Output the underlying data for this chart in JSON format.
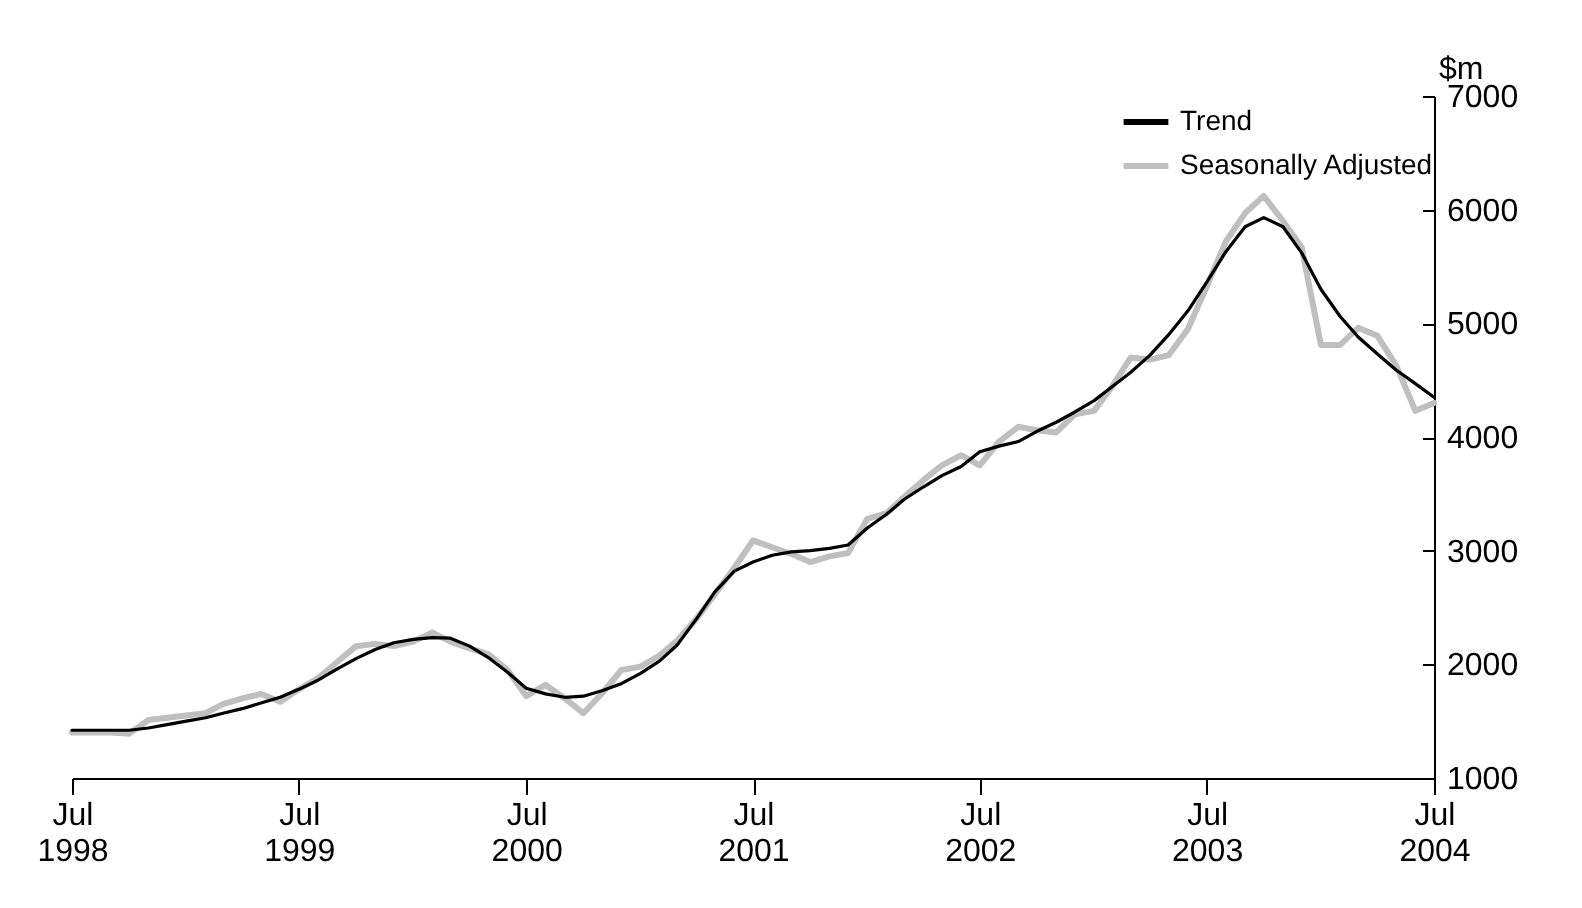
{
  "chart_data": {
    "type": "line",
    "ylabel": "$m",
    "legend": "top right",
    "x": [
      "1998-07",
      "1998-08",
      "1998-09",
      "1998-10",
      "1998-11",
      "1998-12",
      "1999-01",
      "1999-02",
      "1999-03",
      "1999-04",
      "1999-05",
      "1999-06",
      "1999-07",
      "1999-08",
      "1999-09",
      "1999-10",
      "1999-11",
      "1999-12",
      "2000-01",
      "2000-02",
      "2000-03",
      "2000-04",
      "2000-05",
      "2000-06",
      "2000-07",
      "2000-08",
      "2000-09",
      "2000-10",
      "2000-11",
      "2000-12",
      "2001-01",
      "2001-02",
      "2001-03",
      "2001-04",
      "2001-05",
      "2001-06",
      "2001-07",
      "2001-08",
      "2001-09",
      "2001-10",
      "2001-11",
      "2001-12",
      "2002-01",
      "2002-02",
      "2002-03",
      "2002-04",
      "2002-05",
      "2002-06",
      "2002-07",
      "2002-08",
      "2002-09",
      "2002-10",
      "2002-11",
      "2002-12",
      "2003-01",
      "2003-02",
      "2003-03",
      "2003-04",
      "2003-05",
      "2003-06",
      "2003-07",
      "2003-08",
      "2003-09",
      "2003-10",
      "2003-11",
      "2003-12",
      "2004-01",
      "2004-02",
      "2004-03",
      "2004-04",
      "2004-05",
      "2004-06",
      "2004-07"
    ],
    "series": [
      {
        "name": "Trend",
        "color": "#000000",
        "values": [
          1420,
          1420,
          1420,
          1420,
          1440,
          1470,
          1500,
          1530,
          1570,
          1610,
          1660,
          1710,
          1780,
          1860,
          1960,
          2050,
          2130,
          2190,
          2220,
          2235,
          2230,
          2160,
          2060,
          1930,
          1790,
          1740,
          1710,
          1720,
          1770,
          1830,
          1920,
          2030,
          2170,
          2400,
          2640,
          2820,
          2900,
          2960,
          2990,
          3000,
          3020,
          3050,
          3200,
          3320,
          3450,
          3560,
          3660,
          3740,
          3870,
          3920,
          3960,
          4050,
          4130,
          4220,
          4320,
          4450,
          4570,
          4720,
          4900,
          5110,
          5360,
          5630,
          5850,
          5930,
          5850,
          5620,
          5300,
          5060,
          4880,
          4730,
          4590,
          4470,
          4350
        ]
      },
      {
        "name": "Seasonally Adjusted",
        "color": "#bfbfbf",
        "values": [
          1400,
          1400,
          1400,
          1390,
          1510,
          1530,
          1550,
          1570,
          1650,
          1700,
          1740,
          1670,
          1780,
          1880,
          2020,
          2160,
          2180,
          2160,
          2200,
          2280,
          2200,
          2140,
          2090,
          1950,
          1720,
          1820,
          1700,
          1570,
          1750,
          1950,
          1980,
          2080,
          2210,
          2400,
          2620,
          2850,
          3090,
          3030,
          2970,
          2900,
          2950,
          2980,
          3280,
          3330,
          3470,
          3620,
          3750,
          3840,
          3750,
          3960,
          4090,
          4060,
          4040,
          4200,
          4230,
          4460,
          4700,
          4680,
          4720,
          4950,
          5320,
          5720,
          5970,
          6120,
          5900,
          5670,
          4810,
          4810,
          4960,
          4890,
          4630,
          4230,
          4300
        ]
      }
    ],
    "xlim": [
      "1998-07",
      "2004-07"
    ],
    "xticks": [
      {
        "value": "1998-07",
        "label": "Jul 1998"
      },
      {
        "value": "1999-07",
        "label": "Jul 1999"
      },
      {
        "value": "2000-07",
        "label": "Jul 2000"
      },
      {
        "value": "2001-07",
        "label": "Jul 2001"
      },
      {
        "value": "2002-07",
        "label": "Jul 2002"
      },
      {
        "value": "2003-07",
        "label": "Jul 2003"
      },
      {
        "value": "2004-07",
        "label": "Jul 2004"
      }
    ],
    "ylim": [
      1000,
      7000
    ],
    "yticks": [
      1000,
      2000,
      3000,
      4000,
      5000,
      6000,
      7000
    ]
  }
}
